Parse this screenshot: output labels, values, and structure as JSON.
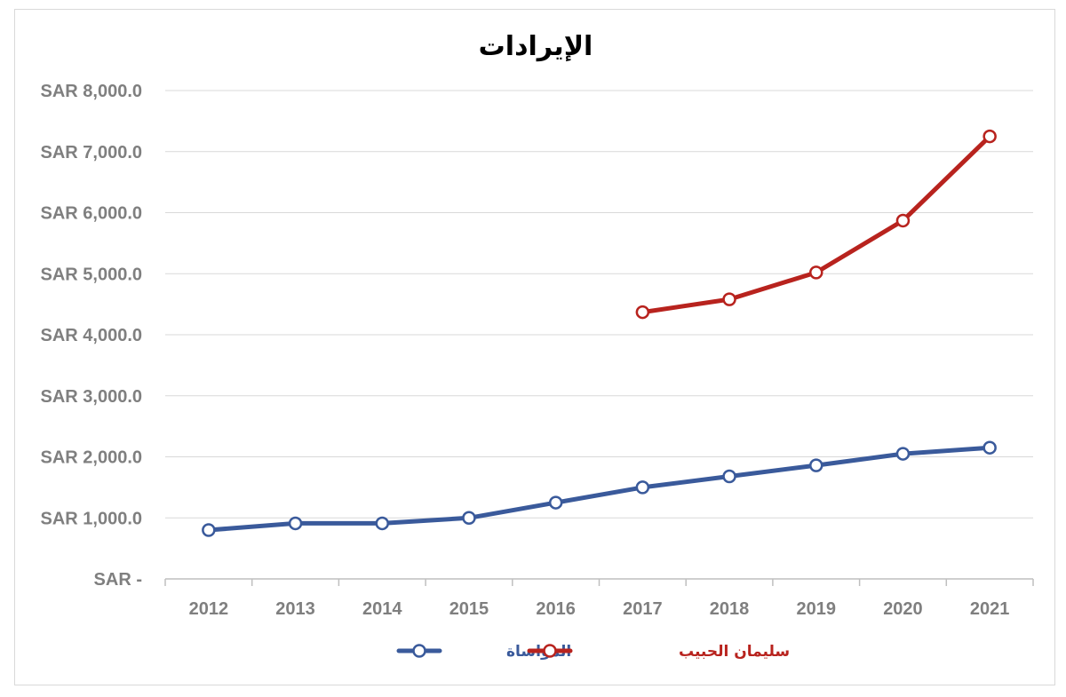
{
  "chart_data": {
    "type": "line",
    "title": "الإيرادات",
    "categories": [
      "2012",
      "2013",
      "2014",
      "2015",
      "2016",
      "2017",
      "2018",
      "2019",
      "2020",
      "2021"
    ],
    "y_ticks": [
      {
        "value": 0,
        "label": "SAR -"
      },
      {
        "value": 1000,
        "label": "SAR 1,000.0"
      },
      {
        "value": 2000,
        "label": "SAR 2,000.0"
      },
      {
        "value": 3000,
        "label": "SAR 3,000.0"
      },
      {
        "value": 4000,
        "label": "SAR 4,000.0"
      },
      {
        "value": 5000,
        "label": "SAR 5,000.0"
      },
      {
        "value": 6000,
        "label": "SAR 6,000.0"
      },
      {
        "value": 7000,
        "label": "SAR 7,000.0"
      },
      {
        "value": 8000,
        "label": "SAR 8,000.0"
      }
    ],
    "ylim": [
      0,
      8000
    ],
    "grid": true,
    "legend_position": "bottom",
    "series": [
      {
        "name": "المواساة",
        "color": "#3a5a9b",
        "values": [
          800,
          910,
          910,
          1000,
          1250,
          1500,
          1680,
          1860,
          2050,
          2150
        ]
      },
      {
        "name": "سليمان الحبيب",
        "color": "#b8231e",
        "values": [
          null,
          null,
          null,
          null,
          null,
          4370,
          4580,
          5020,
          5870,
          7250
        ]
      }
    ]
  }
}
